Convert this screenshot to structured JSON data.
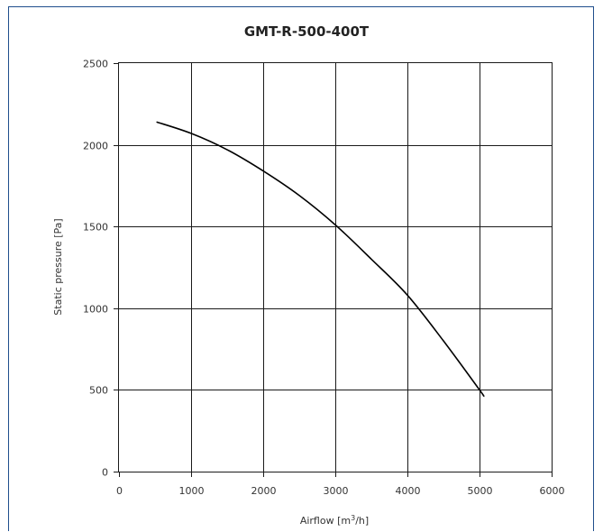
{
  "chart_data": {
    "type": "line",
    "title": "GMT-R-500-400T",
    "xlabel_main": "Airflow [m",
    "xlabel_sup": "3",
    "xlabel_tail": "/h]",
    "ylabel": "Static pressure  [Pa]",
    "xlim": [
      0,
      6000
    ],
    "ylim": [
      0,
      2500
    ],
    "xticks": [
      0,
      1000,
      2000,
      3000,
      4000,
      5000,
      6000
    ],
    "yticks": [
      0,
      500,
      1000,
      1500,
      2000,
      2500
    ],
    "grid": true,
    "series": [
      {
        "color": "#000000",
        "x": [
          520,
          1000,
          1500,
          2000,
          2500,
          3000,
          3500,
          4000,
          4500,
          5000,
          5060
        ],
        "y": [
          2140,
          2070,
          1970,
          1840,
          1690,
          1510,
          1300,
          1080,
          800,
          500,
          460
        ]
      }
    ]
  }
}
